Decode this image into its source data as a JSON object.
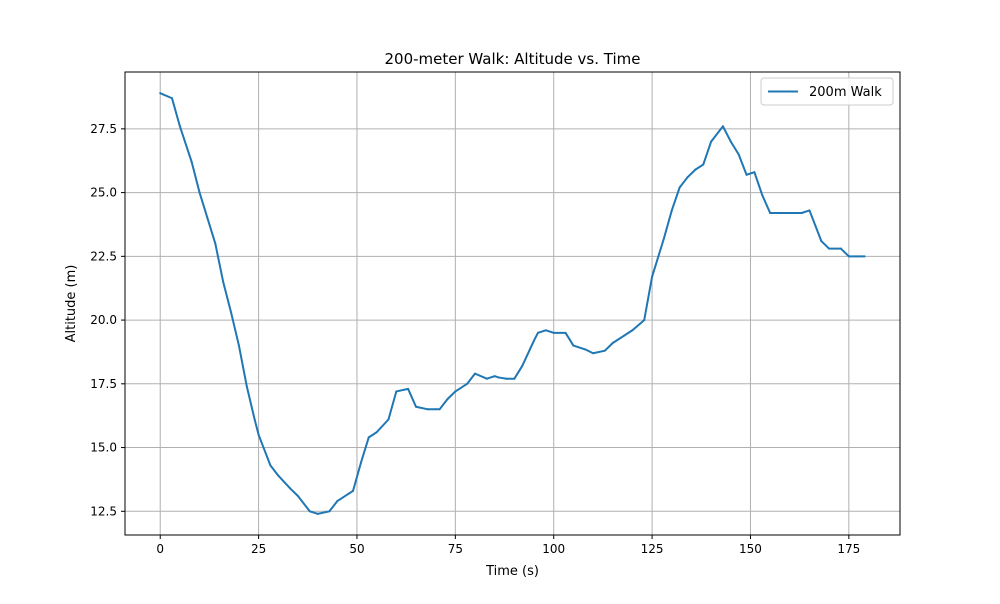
{
  "chart_data": {
    "type": "line",
    "title": "200-meter Walk: Altitude vs. Time",
    "xlabel": "Time (s)",
    "ylabel": "Altitude (m)",
    "xlim": [
      -8.95,
      188.0
    ],
    "ylim": [
      11.57,
      29.73
    ],
    "xticks": [
      0,
      25,
      50,
      75,
      100,
      125,
      150,
      175
    ],
    "yticks": [
      12.5,
      15.0,
      17.5,
      20.0,
      22.5,
      25.0,
      27.5
    ],
    "xtick_labels": [
      "0",
      "25",
      "50",
      "75",
      "100",
      "125",
      "150",
      "175"
    ],
    "ytick_labels": [
      "12.5",
      "15.0",
      "17.5",
      "20.0",
      "22.5",
      "25.0",
      "27.5"
    ],
    "grid": true,
    "legend_position": "top-right",
    "series": [
      {
        "name": "200m Walk",
        "color": "#1f77b4",
        "x": [
          0,
          3,
          5,
          8,
          10,
          12,
          14,
          16,
          18,
          20,
          22,
          24,
          25,
          28,
          30,
          33,
          35,
          38,
          40,
          43,
          45,
          48,
          49,
          51,
          53,
          55,
          58,
          60,
          63,
          65,
          68,
          70,
          71,
          73,
          75,
          78,
          80,
          83,
          85,
          86,
          88,
          90,
          92,
          95,
          96,
          98,
          100,
          103,
          105,
          108,
          110,
          113,
          115,
          118,
          120,
          123,
          125,
          128,
          130,
          132,
          134,
          136,
          138,
          140,
          143,
          145,
          147,
          149,
          151,
          153,
          155,
          158,
          160,
          163,
          165,
          168,
          170,
          173,
          175,
          177,
          179
        ],
        "values": [
          28.9,
          28.7,
          27.6,
          26.2,
          25.0,
          24.0,
          23.0,
          21.5,
          20.3,
          19.0,
          17.4,
          16.1,
          15.5,
          14.3,
          13.9,
          13.4,
          13.1,
          12.5,
          12.4,
          12.5,
          12.9,
          13.2,
          13.3,
          14.4,
          15.4,
          15.6,
          16.1,
          17.2,
          17.3,
          16.6,
          16.5,
          16.5,
          16.5,
          16.9,
          17.2,
          17.5,
          17.9,
          17.7,
          17.8,
          17.75,
          17.7,
          17.7,
          18.2,
          19.2,
          19.5,
          19.6,
          19.5,
          19.5,
          19.0,
          18.85,
          18.7,
          18.8,
          19.1,
          19.4,
          19.6,
          20.0,
          21.7,
          23.2,
          24.3,
          25.2,
          25.6,
          25.9,
          26.1,
          27.0,
          27.6,
          27.0,
          26.5,
          25.7,
          25.8,
          24.9,
          24.2,
          24.2,
          24.2,
          24.2,
          24.3,
          23.1,
          22.8,
          22.8,
          22.5,
          22.5,
          22.5
        ]
      }
    ]
  }
}
